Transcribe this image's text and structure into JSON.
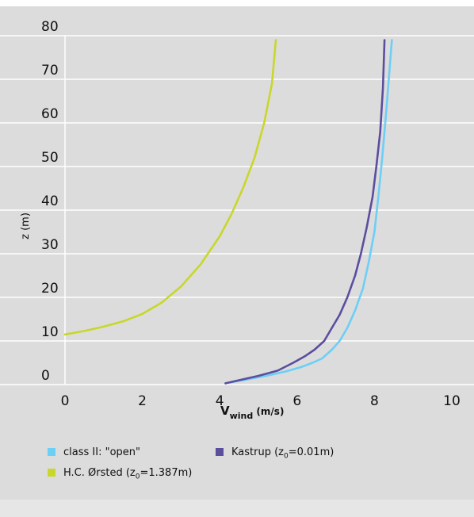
{
  "chart_data": {
    "type": "line",
    "xlabel_main": "V",
    "xlabel_sub": "wind",
    "xlabel_unit": " (m/s)",
    "ylabel": "z (m)",
    "xlim": [
      0,
      10
    ],
    "ylim": [
      0,
      80
    ],
    "xticks": [
      0,
      2,
      4,
      6,
      8,
      10
    ],
    "yticks": [
      0,
      10,
      20,
      30,
      40,
      50,
      60,
      70,
      80
    ],
    "grid": "horizontal",
    "legend_position": "bottom",
    "series": [
      {
        "name": "class II: \"open\"",
        "color": "#6ccff6",
        "x": [
          4.15,
          4.6,
          5.2,
          5.7,
          6.1,
          6.4,
          6.65,
          6.9,
          7.1,
          7.3,
          7.5,
          7.7,
          7.85,
          8.0,
          8.1,
          8.2,
          8.3,
          8.38,
          8.45
        ],
        "y": [
          0.3,
          1,
          2,
          3,
          4,
          5,
          6,
          8,
          10,
          13,
          17,
          22,
          28,
          35,
          43,
          52,
          62,
          71,
          79
        ]
      },
      {
        "name": "Kastrup",
        "name_prefix": "Kastrup  (z",
        "name_sub": "0",
        "name_suffix": "=0.01m)",
        "color": "#5a4e9e",
        "x": [
          4.15,
          4.5,
          5.0,
          5.5,
          5.9,
          6.2,
          6.45,
          6.7,
          6.9,
          7.1,
          7.3,
          7.5,
          7.65,
          7.8,
          7.95,
          8.05,
          8.15,
          8.22,
          8.26
        ],
        "y": [
          0.3,
          1,
          2,
          3.2,
          5,
          6.5,
          8,
          10,
          13,
          16,
          20,
          25,
          30,
          36,
          43,
          50,
          58,
          68,
          79
        ]
      },
      {
        "name": "H.C. Ørsted",
        "name_prefix": "H.C. Ørsted (z",
        "name_sub": "0",
        "name_suffix": "=1.387m)",
        "color": "#c8d72a",
        "x": [
          0,
          0.5,
          1.0,
          1.5,
          2.0,
          2.5,
          3.0,
          3.5,
          4.0,
          4.3,
          4.6,
          4.9,
          5.15,
          5.35,
          5.45
        ],
        "y": [
          11.5,
          12.3,
          13.3,
          14.5,
          16.2,
          18.8,
          22.5,
          27.5,
          34,
          39,
          45,
          52,
          60,
          69,
          79
        ]
      }
    ]
  },
  "legend": {
    "item1": "class II: \"open\"",
    "item2_prefix": "Kastrup  (z",
    "item2_sub": "0",
    "item2_suffix": "=0.01m)",
    "item3_prefix": "H.C. Ørsted (z",
    "item3_sub": "0",
    "item3_suffix": "=1.387m)"
  }
}
